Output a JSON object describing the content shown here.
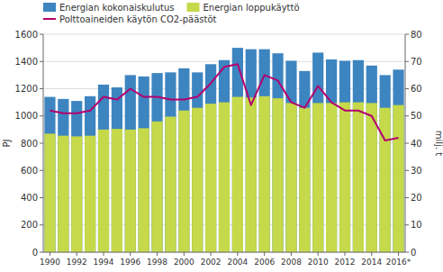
{
  "chart_data": {
    "type": "bar",
    "categories": [
      "1990",
      null,
      "1992",
      null,
      "1994",
      null,
      "1996",
      null,
      "1998",
      null,
      "2000",
      null,
      "2002",
      null,
      "2004",
      null,
      "2006",
      null,
      "2008",
      null,
      "2010",
      null,
      "2012",
      null,
      "2014",
      null,
      "2016*"
    ],
    "series": [
      {
        "name": "Energian kokonaiskulutus",
        "color": "#3d85c0",
        "type": "bar",
        "values": [
          1140,
          1125,
          1110,
          1145,
          1230,
          1210,
          1300,
          1290,
          1315,
          1320,
          1350,
          1320,
          1380,
          1410,
          1500,
          1490,
          1490,
          1460,
          1405,
          1330,
          1465,
          1415,
          1405,
          1410,
          1370,
          1300,
          1340
        ]
      },
      {
        "name": "Energian loppukäyttö",
        "color": "#c5d94a",
        "type": "bar",
        "values": [
          870,
          855,
          850,
          855,
          900,
          905,
          900,
          910,
          960,
          995,
          1040,
          1060,
          1090,
          1100,
          1140,
          1135,
          1145,
          1130,
          1095,
          1060,
          1095,
          1095,
          1100,
          1100,
          1095,
          1060,
          1080
        ]
      },
      {
        "name": "Polttoaineiden käytön CO2-päästöt",
        "color": "#b3006e",
        "type": "line",
        "axis": "y2",
        "values": [
          52,
          51,
          51,
          52,
          57,
          56,
          60,
          57,
          57,
          56,
          56,
          57,
          62,
          68,
          69,
          54,
          65,
          63,
          55,
          53,
          61,
          55,
          52,
          52,
          50,
          41,
          42
        ]
      }
    ],
    "y_label": "PJ",
    "y2_label": "milj. t",
    "ylim": [
      0,
      1600
    ],
    "yticks": [
      0,
      200,
      400,
      600,
      800,
      1000,
      1200,
      1400,
      1600
    ],
    "y2lim": [
      0,
      80
    ],
    "y2ticks": [
      0,
      10,
      20,
      30,
      40,
      50,
      60,
      70,
      80
    ],
    "stacked": false,
    "grid": true,
    "legend": "upper left"
  }
}
